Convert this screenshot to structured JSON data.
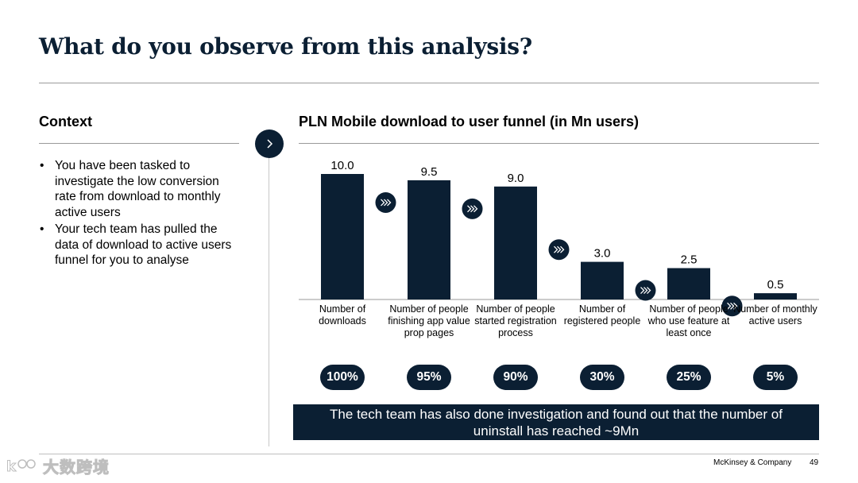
{
  "slide": {
    "title": "What do you observe from this analysis?",
    "footer_brand": "McKinsey & Company",
    "page_number": "49",
    "watermark": "大数跨境"
  },
  "context": {
    "heading": "Context",
    "bullets": [
      "You have been tasked to investigate the low conversion rate from download to monthly active users",
      "Your tech team has pulled the data of download to active users funnel for you to analyse"
    ]
  },
  "chart_data": {
    "type": "bar",
    "title": "PLN Mobile download to user funnel (in Mn users)",
    "categories": [
      "Number of downloads",
      "Number of people finishing app value prop pages",
      "Number of people started registration process",
      "Number of registered people",
      "Number of people who use feature at least once",
      "Number of monthly active users"
    ],
    "values": [
      10.0,
      9.5,
      9.0,
      3.0,
      2.5,
      0.5
    ],
    "value_labels": [
      "10.0",
      "9.5",
      "9.0",
      "3.0",
      "2.5",
      "0.5"
    ],
    "percent_of_downloads": [
      "100%",
      "95%",
      "90%",
      "30%",
      "25%",
      "5%"
    ],
    "ylim": [
      0,
      10
    ],
    "grid": false,
    "bar_color": "#0b1f33"
  },
  "note": "The tech team has also done investigation and found out that the number of uninstall has reached ~9Mn",
  "colors": {
    "navy": "#0b1f33",
    "rule": "#9a9a9a"
  },
  "icons": {
    "next": "chevron-right-icon",
    "step": "double-chevron-right-icon"
  }
}
